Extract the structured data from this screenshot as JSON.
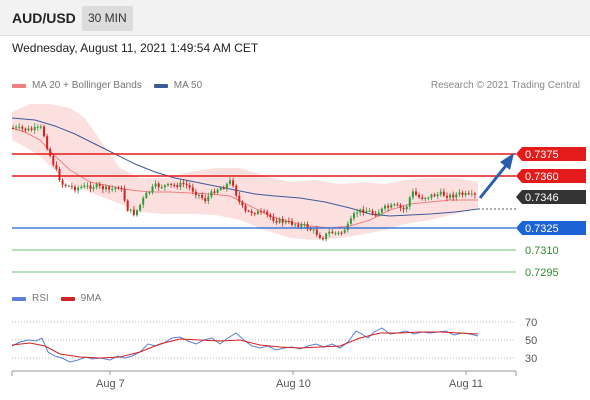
{
  "header": {
    "symbol": "AUD/USD",
    "timeframe": "30 MIN"
  },
  "datetime": "Wednesday, August 11, 2021 1:49:54 AM CET",
  "legend": {
    "ma20_label": "MA 20 + Bollinger Bands",
    "ma50_label": "MA 50",
    "copyright": "Research © 2021 Trading Central"
  },
  "levels": [
    {
      "value": "0.7375",
      "kind": "resistance",
      "color": "#e31b1b"
    },
    {
      "value": "0.7360",
      "kind": "resistance",
      "color": "#e31b1b"
    },
    {
      "value": "0.7346",
      "kind": "last-price",
      "color": "#333333"
    },
    {
      "value": "0.7325",
      "kind": "pivot",
      "color": "#1d63d6"
    },
    {
      "value": "0.7310",
      "kind": "support",
      "color": "#2d8a2d"
    },
    {
      "value": "0.7295",
      "kind": "support",
      "color": "#2d8a2d"
    }
  ],
  "rsi_legend": {
    "rsi_label": "RSI",
    "ma_label": "9MA"
  },
  "rsi_axis": [
    "70",
    "50",
    "30"
  ],
  "x_axis": [
    "Aug 7",
    "Aug 10",
    "Aug 11"
  ],
  "colors": {
    "bull": "#2e9b3a",
    "bear": "#d32222",
    "bollinger": "#f7c2c2",
    "ma20": "#f08080",
    "ma50": "#3d5a99",
    "rsi": "#5b7fd6",
    "rsi_ma": "#d32222",
    "arrow": "#2a5daa"
  }
}
